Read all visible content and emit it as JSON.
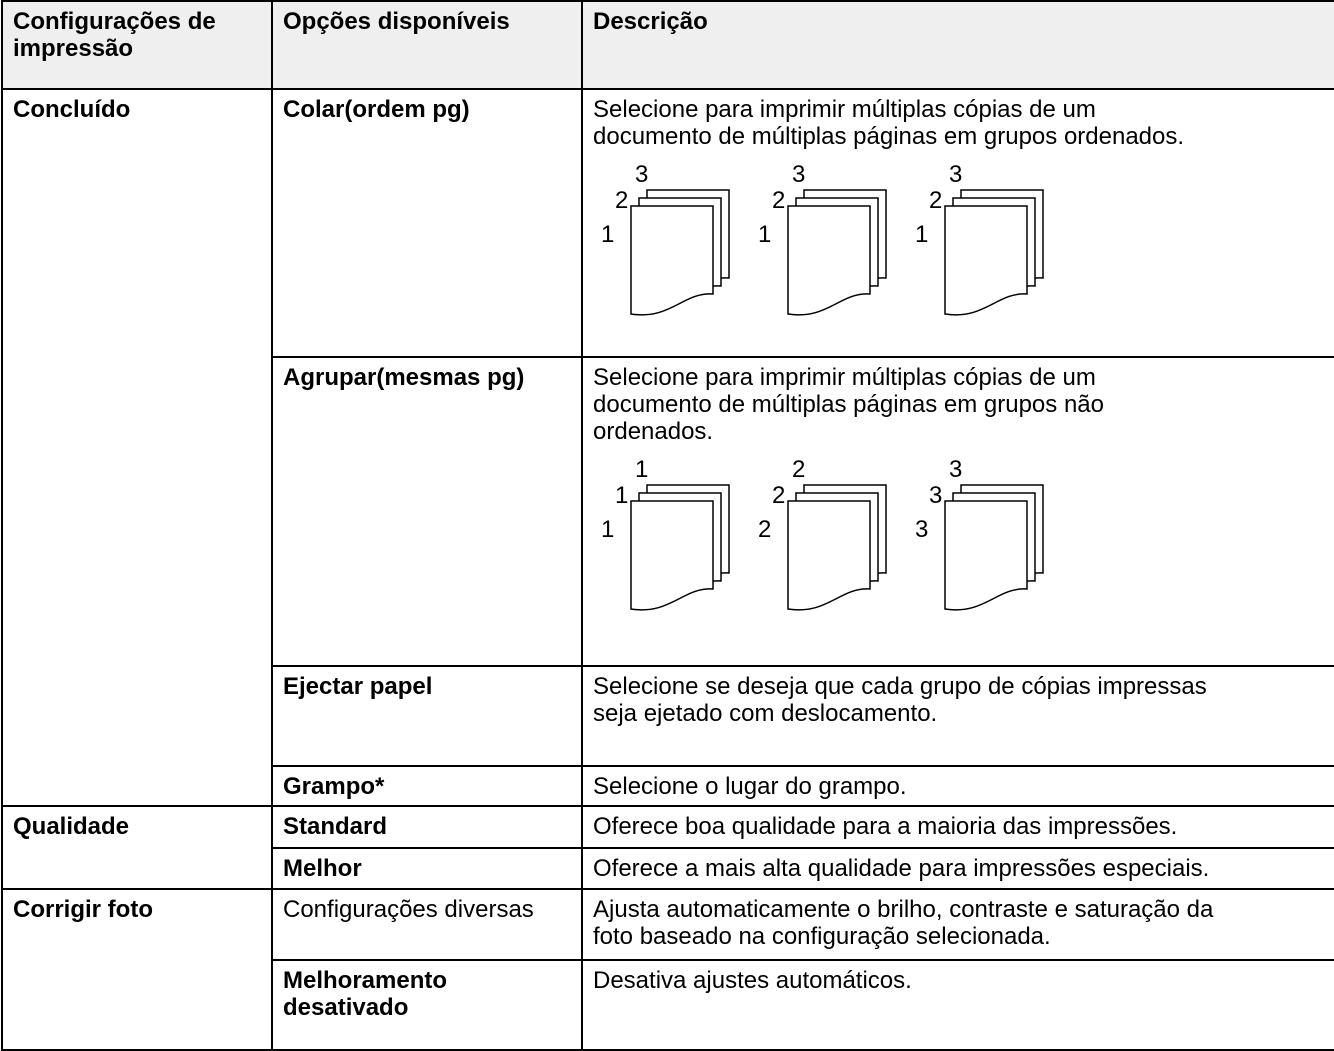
{
  "table": {
    "header": [
      "Configurações de impressão",
      "Opções disponíveis",
      "Descrição"
    ],
    "rows": [
      {
        "setting": "Concluído",
        "option": "Colar(ordem pg)",
        "description": [
          "Selecione para imprimir múltiplas cópias de um",
          "documento de múltiplas páginas em grupos ordenados."
        ],
        "illustration": [
          [
            "3",
            "2",
            "1"
          ],
          [
            "3",
            "2",
            "1"
          ],
          [
            "3",
            "2",
            "1"
          ]
        ]
      },
      {
        "option": "Agrupar(mesmas pg)",
        "description": [
          "Selecione para imprimir múltiplas cópias de um",
          "documento de múltiplas páginas em grupos não",
          "ordenados."
        ],
        "illustration": [
          [
            "1",
            "1",
            "1"
          ],
          [
            "2",
            "2",
            "2"
          ],
          [
            "3",
            "3",
            "3"
          ]
        ]
      },
      {
        "option": "Ejectar papel",
        "description": [
          "Selecione se deseja que cada grupo de cópias impressas",
          "seja ejetado com deslocamento."
        ]
      },
      {
        "option": "Grampo*",
        "description": [
          "Selecione o lugar do grampo."
        ]
      },
      {
        "setting": "Qualidade",
        "option": "Standard",
        "description": [
          "Oferece boa qualidade para a maioria das impressões."
        ]
      },
      {
        "option": "Melhor",
        "description": [
          "Oferece a mais alta qualidade para impressões especiais."
        ]
      },
      {
        "setting": "Corrigir foto",
        "option": "Configurações diversas",
        "description": [
          "Ajusta automaticamente o brilho, contraste e saturação da",
          "foto baseado na configuração selecionada."
        ]
      },
      {
        "option": "Melhoramento desativado",
        "description": [
          "Desativa ajustes automáticos."
        ]
      }
    ]
  }
}
